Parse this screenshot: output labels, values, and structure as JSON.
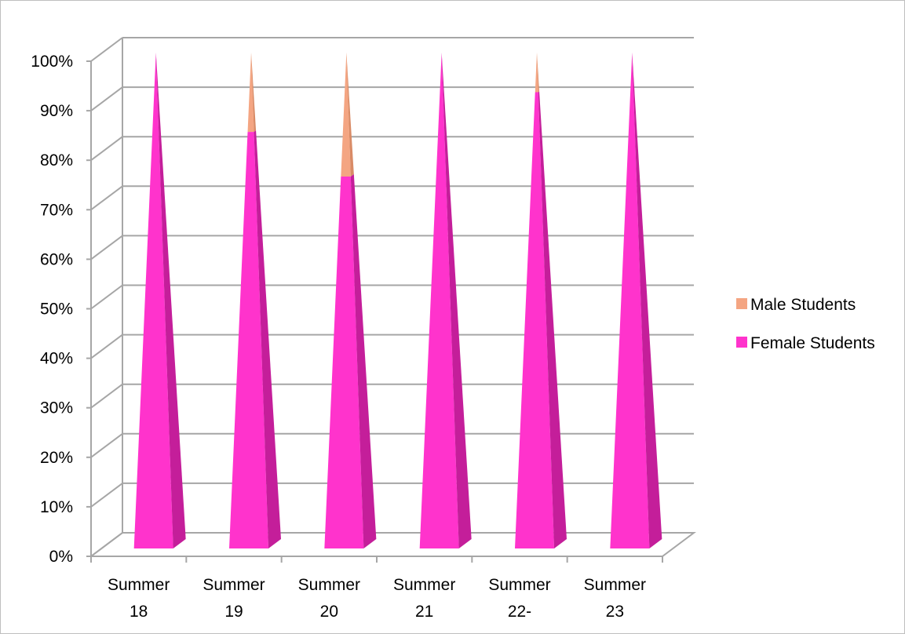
{
  "chart_data": {
    "type": "bar",
    "subtype": "3d-pyramid-100-stacked",
    "categories": [
      [
        "Summer",
        "18"
      ],
      [
        "Summer",
        "19"
      ],
      [
        "Summer",
        "20"
      ],
      [
        "Summer",
        "21"
      ],
      [
        "Summer",
        "22-"
      ],
      [
        "Summer",
        "23"
      ]
    ],
    "series": [
      {
        "name": "Female Students",
        "values": [
          100,
          84,
          75,
          100,
          92,
          100
        ]
      },
      {
        "name": "Male Students",
        "values": [
          0,
          16,
          25,
          0,
          8,
          0
        ]
      }
    ],
    "y_ticks": [
      "0%",
      "10%",
      "20%",
      "30%",
      "40%",
      "50%",
      "60%",
      "70%",
      "80%",
      "90%",
      "100%"
    ],
    "ylim": [
      0,
      100
    ],
    "grid": true,
    "legend": {
      "position": "right",
      "entries": [
        {
          "name": "Male Students",
          "color": "#F4A582"
        },
        {
          "name": "Female Students",
          "color": "#FF33CC"
        }
      ]
    },
    "colors": {
      "female_front": "#FF33CC",
      "female_side": "#C41E9A",
      "male_front": "#F4A582",
      "male_side": "#D98B66",
      "grid": "#a6a6a6"
    }
  }
}
